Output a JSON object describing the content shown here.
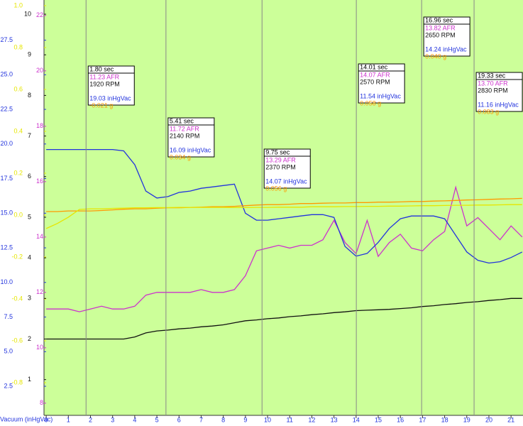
{
  "chart_data": {
    "type": "line",
    "x": [
      0,
      0.5,
      1,
      1.5,
      2,
      2.5,
      3,
      3.5,
      4,
      4.5,
      5,
      5.5,
      6,
      6.5,
      7,
      7.5,
      8,
      8.5,
      9,
      9.5,
      10,
      10.5,
      11,
      11.5,
      12,
      12.5,
      13,
      13.5,
      14,
      14.5,
      15,
      15.5,
      16,
      16.5,
      17,
      17.5,
      18,
      18.5,
      19,
      19.5,
      20,
      20.5,
      21,
      21.5
    ],
    "xlim": [
      -0.1,
      21.54
    ],
    "xticks": [
      0,
      1,
      2,
      3,
      4,
      5,
      6,
      7,
      8,
      9,
      10,
      11,
      12,
      13,
      14,
      15,
      16,
      17,
      18,
      19,
      20,
      21
    ],
    "background": "#ccff99",
    "axes": [
      {
        "color": "#e6e600",
        "ylim": [
          -0.956,
          1.027
        ],
        "yticks": [
          {
            "value": -0.8,
            "label": "-0.8"
          },
          -0.6,
          -0.4,
          -0.2,
          {
            "value": 0,
            "label": "0.0"
          },
          0.2,
          0.4,
          0.6,
          0.8,
          {
            "value": 1,
            "label": "1.0"
          }
        ]
      },
      {
        "color": "#2233dd",
        "label": "Vacuum (inHgVac)",
        "ylim": [
          0.4,
          30.4
        ],
        "yticks": [
          2.5,
          {
            "value": 5,
            "label": "5.0"
          },
          7.5,
          {
            "value": 10,
            "label": "10.0"
          },
          12.5,
          {
            "value": 15,
            "label": "15.0"
          },
          17.5,
          {
            "value": 20,
            "label": "20.0"
          },
          22.5,
          {
            "value": 25,
            "label": "25.0"
          },
          27.5
        ]
      },
      {
        "color": "#111111",
        "ylim": [
          0.12,
          10.35
        ],
        "yticks": [
          1,
          2,
          3,
          4,
          5,
          6,
          7,
          8,
          9,
          10
        ]
      },
      {
        "color": "#cc33cc",
        "ylim": [
          7.56,
          22.56
        ],
        "yticks": [
          8,
          10,
          12,
          14,
          16,
          18,
          20,
          22
        ]
      }
    ],
    "series": [
      {
        "color": "#cc33cc",
        "axis": 3,
        "values": [
          11.4,
          11.4,
          11.4,
          11.3,
          11.4,
          11.5,
          11.4,
          11.4,
          11.5,
          11.9,
          12.0,
          12.0,
          12.0,
          12.0,
          12.1,
          12.0,
          12.0,
          12.1,
          12.6,
          13.5,
          13.6,
          13.7,
          13.6,
          13.7,
          13.7,
          13.9,
          14.6,
          13.8,
          13.4,
          14.6,
          13.3,
          13.8,
          14.1,
          13.6,
          13.5,
          13.9,
          14.2,
          15.8,
          14.4,
          14.7,
          14.3,
          13.9,
          14.4,
          14.0
        ]
      },
      {
        "color": "#111111",
        "axis": 2,
        "values": [
          2.0,
          2.0,
          2.0,
          2.0,
          2.0,
          2.0,
          2.0,
          2.0,
          2.05,
          2.15,
          2.2,
          2.22,
          2.25,
          2.27,
          2.3,
          2.32,
          2.35,
          2.4,
          2.45,
          2.47,
          2.5,
          2.52,
          2.55,
          2.57,
          2.6,
          2.62,
          2.65,
          2.67,
          2.7,
          2.71,
          2.72,
          2.73,
          2.75,
          2.77,
          2.8,
          2.82,
          2.85,
          2.87,
          2.9,
          2.92,
          2.95,
          2.97,
          3.0,
          3.0
        ]
      },
      {
        "color": "#2233dd",
        "axis": 1,
        "values": [
          19.6,
          19.6,
          19.6,
          19.6,
          19.6,
          19.6,
          19.6,
          19.5,
          18.5,
          16.6,
          16.1,
          16.2,
          16.5,
          16.6,
          16.8,
          16.9,
          17.0,
          17.1,
          15.0,
          14.5,
          14.5,
          14.6,
          14.7,
          14.8,
          14.9,
          14.9,
          14.7,
          12.6,
          11.9,
          12.1,
          12.9,
          13.9,
          14.6,
          14.8,
          14.8,
          14.8,
          14.6,
          13.4,
          12.2,
          11.6,
          11.4,
          11.5,
          11.8,
          12.2
        ]
      },
      {
        "color": "#ff9900",
        "axis": 0,
        "values": [
          0.017,
          0.017,
          0.02,
          0.02,
          0.02,
          0.022,
          0.025,
          0.028,
          0.03,
          0.03,
          0.033,
          0.035,
          0.035,
          0.037,
          0.038,
          0.04,
          0.04,
          0.042,
          0.045,
          0.048,
          0.05,
          0.05,
          0.052,
          0.055,
          0.055,
          0.057,
          0.058,
          0.058,
          0.06,
          0.06,
          0.062,
          0.062,
          0.063,
          0.065,
          0.065,
          0.067,
          0.068,
          0.07,
          0.072,
          0.073,
          0.075,
          0.077,
          0.078,
          0.08
        ]
      },
      {
        "color": "#e6e600",
        "axis": 0,
        "values": [
          -0.064,
          -0.04,
          -0.01,
          0.027,
          0.03,
          0.03,
          0.032,
          0.033,
          0.035,
          0.035,
          0.036,
          0.036,
          0.037,
          0.037,
          0.037,
          0.037,
          0.037,
          0.036,
          0.036,
          0.037,
          0.037,
          0.038,
          0.038,
          0.038,
          0.04,
          0.04,
          0.04,
          0.041,
          0.041,
          0.042,
          0.042,
          0.043,
          0.043,
          0.044,
          0.045,
          0.045,
          0.046,
          0.047,
          0.047,
          0.048,
          0.048,
          0.049,
          0.05,
          0.05
        ]
      }
    ],
    "cursors": [
      {
        "time": 1.8,
        "label": "1.80 sec",
        "afr": "11.23 AFR",
        "rpm": "1920 RPM",
        "vac": "19.03 inHgVac",
        "g": "-0.021 g"
      },
      {
        "time": 5.41,
        "label": "5.41 sec",
        "afr": "11.72 AFR",
        "rpm": "2140 RPM",
        "vac": "16.09 inHgVac",
        "g": "0.034 g"
      },
      {
        "time": 9.75,
        "label": "9.75 sec",
        "afr": "13.29 AFR",
        "rpm": "2370 RPM",
        "vac": "14.07 inHgVac",
        "g": "0.056 g"
      },
      {
        "time": 14.01,
        "label": "14.01 sec",
        "afr": "14.07 AFR",
        "rpm": "2570 RPM",
        "vac": "11.54 inHgVac",
        "g": "0.058 g"
      },
      {
        "time": 16.96,
        "label": "16.96 sec",
        "afr": "13.82 AFR",
        "rpm": "2650 RPM",
        "vac": "14.24 inHgVac",
        "g": "0.040 g"
      },
      {
        "time": 19.33,
        "label": "19.33 sec",
        "afr": "13.70 AFR",
        "rpm": "2830 RPM",
        "vac": "11.16 inHgVac",
        "g": "0.083 g"
      }
    ]
  }
}
